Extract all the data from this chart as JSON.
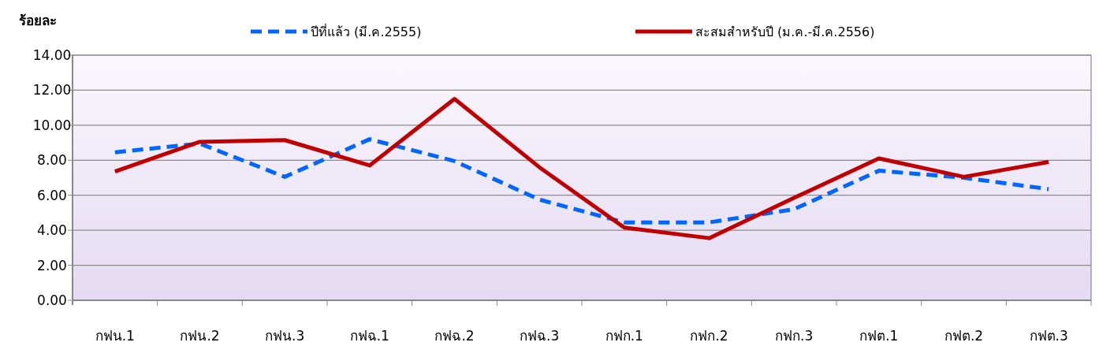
{
  "chart_data": {
    "type": "line",
    "ylabel": "ร้อยละ",
    "categories": [
      "กฟน.1",
      "กฟน.2",
      "กฟน.3",
      "กฟฉ.1",
      "กฟฉ.2",
      "กฟฉ.3",
      "กฟก.1",
      "กฟก.2",
      "กฟก.3",
      "กฟต.1",
      "กฟต.2",
      "กฟต.3"
    ],
    "series": [
      {
        "name": "ปีที่แล้ว (มี.ค.2555)",
        "color": "#0066ff",
        "line_style": "dashed",
        "values": [
          8.45,
          8.95,
          7.05,
          9.2,
          7.95,
          5.75,
          4.45,
          4.45,
          5.2,
          7.4,
          7.0,
          6.35
        ]
      },
      {
        "name": "สะสมสำหรับปี (ม.ค.-มี.ค.2556)",
        "color": "#c00000",
        "line_style": "solid",
        "values": [
          7.35,
          9.05,
          9.15,
          7.7,
          11.5,
          7.6,
          4.15,
          3.55,
          5.85,
          8.1,
          7.05,
          7.9
        ]
      }
    ],
    "ylim": [
      0,
      14
    ],
    "yticks": [
      {
        "value": 0,
        "label": "0.00"
      },
      {
        "value": 2,
        "label": "2.00"
      },
      {
        "value": 4,
        "label": "4.00"
      },
      {
        "value": 6,
        "label": "6.00"
      },
      {
        "value": 8,
        "label": "8.00"
      },
      {
        "value": 10,
        "label": "10.00"
      },
      {
        "value": 12,
        "label": "12.00"
      },
      {
        "value": 14,
        "label": "14.00"
      }
    ],
    "grid": "y",
    "legend": "top",
    "marker": "none"
  }
}
